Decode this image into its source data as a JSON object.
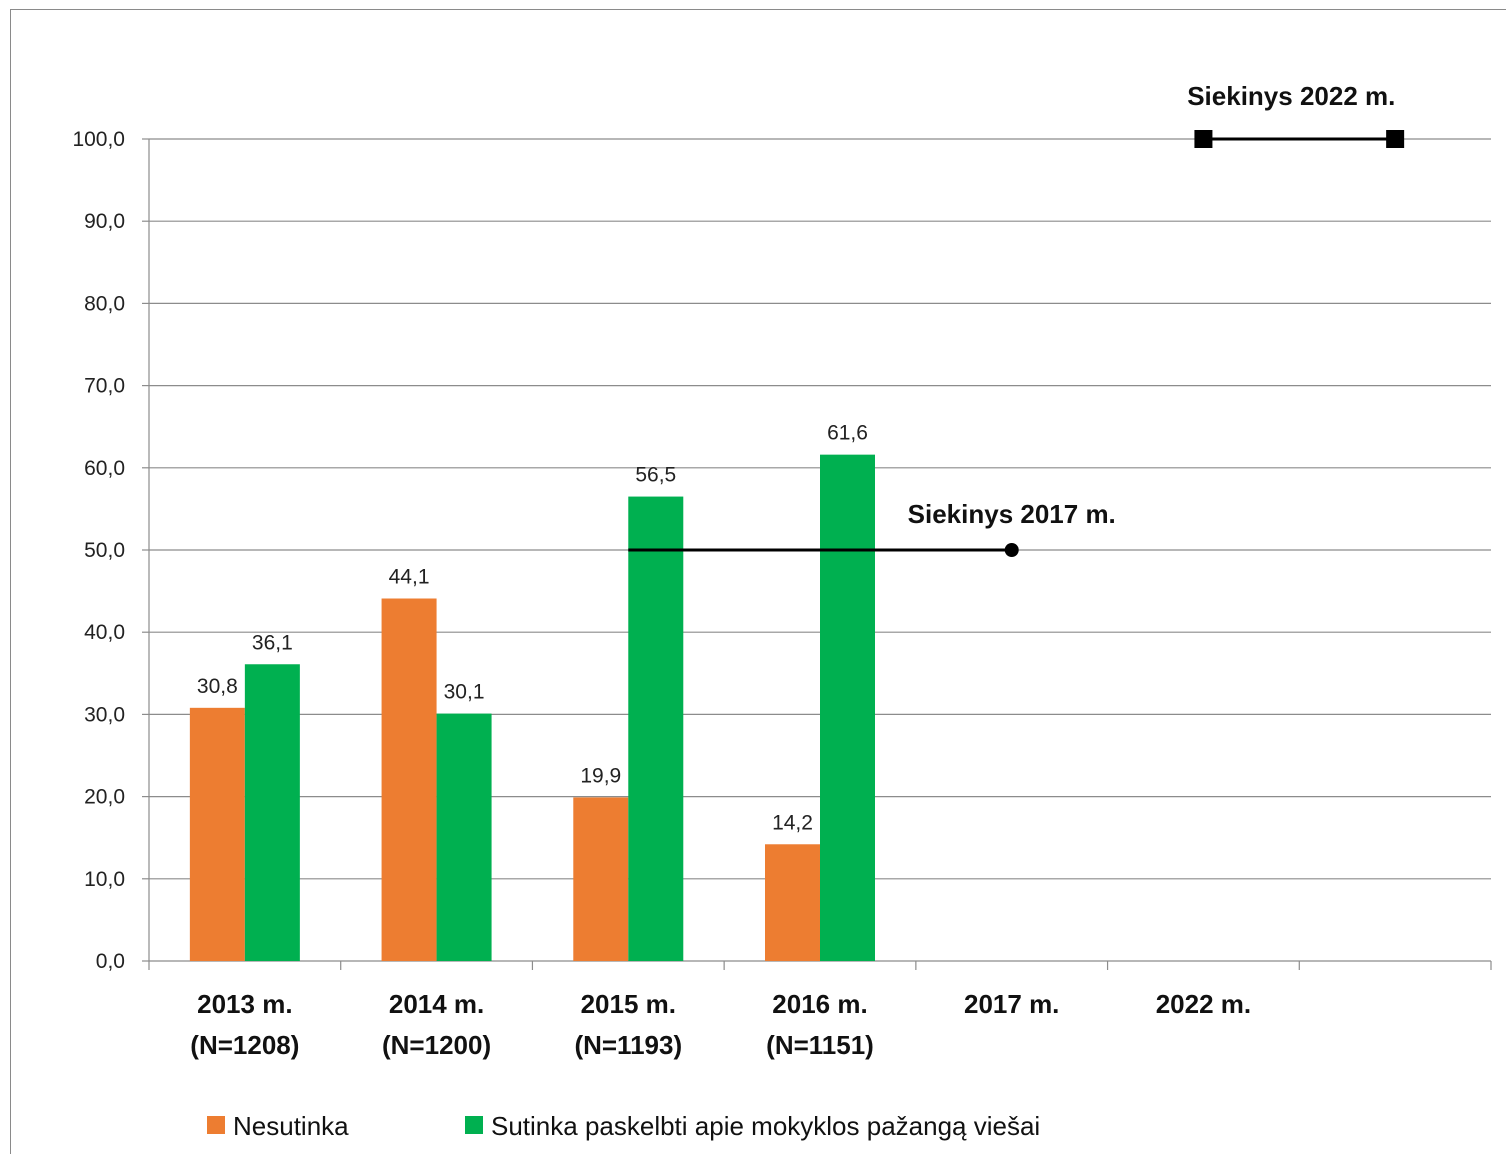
{
  "chart_data": {
    "type": "bar",
    "categories": [
      [
        "2013 m.",
        "(N=1208)"
      ],
      [
        "2014 m.",
        "(N=1200)"
      ],
      [
        "2015 m.",
        "(N=1193)"
      ],
      [
        "2016 m.",
        "(N=1151)"
      ],
      [
        "2017 m."
      ],
      [
        "2022 m."
      ]
    ],
    "series": [
      {
        "name": "Nesutinka",
        "color": "#ED7D31",
        "values": [
          30.8,
          44.1,
          19.9,
          14.2,
          null,
          null
        ],
        "labels": [
          "30,8",
          "44,1",
          "19,9",
          "14,2",
          "",
          ""
        ]
      },
      {
        "name": "Sutinka paskelbti apie mokyklos pažangą viešai",
        "color": "#00B050",
        "values": [
          36.1,
          30.1,
          56.5,
          61.6,
          null,
          null
        ],
        "labels": [
          "36,1",
          "30,1",
          "56,5",
          "61,6",
          "",
          ""
        ]
      }
    ],
    "ylim": [
      0,
      100
    ],
    "yticks": [
      "0,0",
      "10,0",
      "20,0",
      "30,0",
      "40,0",
      "50,0",
      "60,0",
      "70,0",
      "80,0",
      "90,0",
      "100,0"
    ],
    "grid": true,
    "targets": [
      {
        "label": "Siekinys 2017 m.",
        "value": 50,
        "from_category": 2,
        "to_category": 4,
        "marker": "circle"
      },
      {
        "label": "Siekinys 2022 m.",
        "value": 100,
        "from_category": 5,
        "to_category": 6,
        "marker": "square"
      }
    ],
    "legend_position": "bottom",
    "xlabel": "",
    "ylabel": ""
  }
}
